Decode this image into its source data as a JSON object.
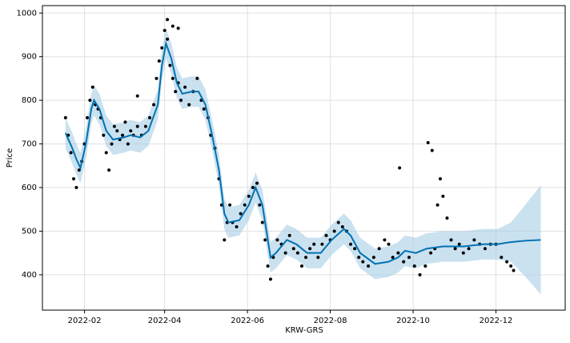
{
  "chart_data": {
    "type": "forecast",
    "x_label": "KRW-GRS",
    "y_label": "Price",
    "xlim": [
      0,
      385
    ],
    "ylim": [
      319,
      1017
    ],
    "xticks": [
      {
        "value": 31,
        "label": "2022-02"
      },
      {
        "value": 90,
        "label": "2022-04"
      },
      {
        "value": 151,
        "label": "2022-06"
      },
      {
        "value": 212,
        "label": "2022-08"
      },
      {
        "value": 273,
        "label": "2022-10"
      },
      {
        "value": 334,
        "label": "2022-12"
      }
    ],
    "yticks": [
      400,
      500,
      600,
      700,
      800,
      900,
      1000
    ],
    "grid": true,
    "forecast": {
      "color": "#0072b2",
      "band_color": "#a6cde6",
      "x": [
        17,
        22,
        25,
        28,
        32,
        36,
        38,
        42,
        47,
        52,
        60,
        65,
        72,
        78,
        85,
        88,
        91,
        95,
        99,
        103,
        110,
        115,
        120,
        125,
        130,
        134,
        137,
        145,
        152,
        157,
        162,
        165,
        168,
        172,
        180,
        187,
        195,
        205,
        213,
        222,
        227,
        234,
        245,
        255,
        262,
        267,
        275,
        283,
        295,
        310,
        325,
        335,
        345,
        355,
        367
      ],
      "values": [
        725,
        690,
        665,
        645,
        700,
        780,
        800,
        780,
        730,
        710,
        715,
        720,
        715,
        730,
        790,
        880,
        930,
        895,
        840,
        815,
        820,
        820,
        790,
        720,
        640,
        540,
        520,
        525,
        560,
        600,
        560,
        500,
        440,
        450,
        480,
        470,
        450,
        450,
        480,
        505,
        490,
        450,
        425,
        430,
        440,
        455,
        450,
        460,
        465,
        465,
        470,
        470,
        475,
        478,
        480
      ],
      "lower": [
        690,
        655,
        630,
        610,
        665,
        745,
        765,
        745,
        695,
        675,
        680,
        685,
        680,
        695,
        755,
        845,
        895,
        860,
        805,
        780,
        785,
        785,
        755,
        685,
        605,
        505,
        485,
        490,
        525,
        565,
        525,
        465,
        405,
        415,
        445,
        435,
        415,
        415,
        445,
        470,
        455,
        415,
        390,
        395,
        405,
        420,
        415,
        425,
        430,
        430,
        435,
        435,
        430,
        398,
        355
      ],
      "upper": [
        760,
        725,
        700,
        680,
        735,
        815,
        835,
        815,
        765,
        745,
        750,
        755,
        750,
        765,
        825,
        915,
        965,
        930,
        875,
        850,
        855,
        855,
        825,
        755,
        675,
        575,
        555,
        560,
        595,
        635,
        595,
        535,
        475,
        485,
        515,
        505,
        485,
        485,
        515,
        540,
        525,
        485,
        460,
        465,
        475,
        490,
        485,
        495,
        500,
        500,
        505,
        505,
        520,
        558,
        605
      ]
    },
    "observed": {
      "color": "#000000",
      "x": [
        17,
        19,
        21,
        23,
        25,
        27,
        29,
        31,
        33,
        35,
        37,
        39,
        41,
        43,
        45,
        47,
        49,
        51,
        53,
        55,
        57,
        59,
        61,
        63,
        65,
        67,
        70,
        73,
        76,
        79,
        82,
        84,
        86,
        88,
        90,
        92,
        94,
        96,
        98,
        100,
        102,
        105,
        108,
        111,
        114,
        117,
        119,
        122,
        124,
        127,
        130,
        132,
        134,
        136,
        138,
        140,
        143,
        146,
        149,
        152,
        155,
        158,
        160,
        162,
        164,
        166,
        168,
        170,
        173,
        176,
        179,
        182,
        185,
        188,
        191,
        194,
        197,
        200,
        203,
        206,
        209,
        212,
        215,
        218,
        221,
        224,
        227,
        230,
        233,
        236,
        240,
        244,
        248,
        252,
        255,
        258,
        262,
        266,
        270,
        274,
        278,
        282,
        286,
        289,
        291,
        293,
        295,
        298,
        301,
        304,
        307,
        310,
        314,
        318,
        322,
        326,
        330,
        334,
        338,
        342,
        345,
        347,
        70,
        92,
        96,
        100,
        263,
        284,
        287
      ],
      "values": [
        760,
        720,
        680,
        620,
        600,
        640,
        660,
        700,
        760,
        800,
        830,
        790,
        780,
        760,
        720,
        680,
        640,
        700,
        740,
        730,
        710,
        720,
        750,
        700,
        730,
        720,
        740,
        720,
        740,
        760,
        790,
        850,
        890,
        920,
        960,
        940,
        880,
        850,
        820,
        840,
        800,
        830,
        790,
        820,
        850,
        800,
        780,
        760,
        720,
        690,
        620,
        560,
        480,
        520,
        560,
        520,
        510,
        540,
        560,
        580,
        600,
        610,
        560,
        520,
        480,
        420,
        390,
        440,
        480,
        470,
        450,
        490,
        460,
        450,
        420,
        440,
        460,
        470,
        440,
        470,
        490,
        480,
        500,
        520,
        510,
        500,
        470,
        460,
        440,
        430,
        420,
        440,
        460,
        480,
        470,
        440,
        450,
        430,
        440,
        420,
        400,
        420,
        450,
        460,
        560,
        620,
        580,
        530,
        480,
        460,
        470,
        450,
        460,
        480,
        470,
        460,
        470,
        470,
        440,
        430,
        420,
        410,
        810,
        985,
        970,
        965,
        645,
        703,
        685
      ]
    }
  }
}
